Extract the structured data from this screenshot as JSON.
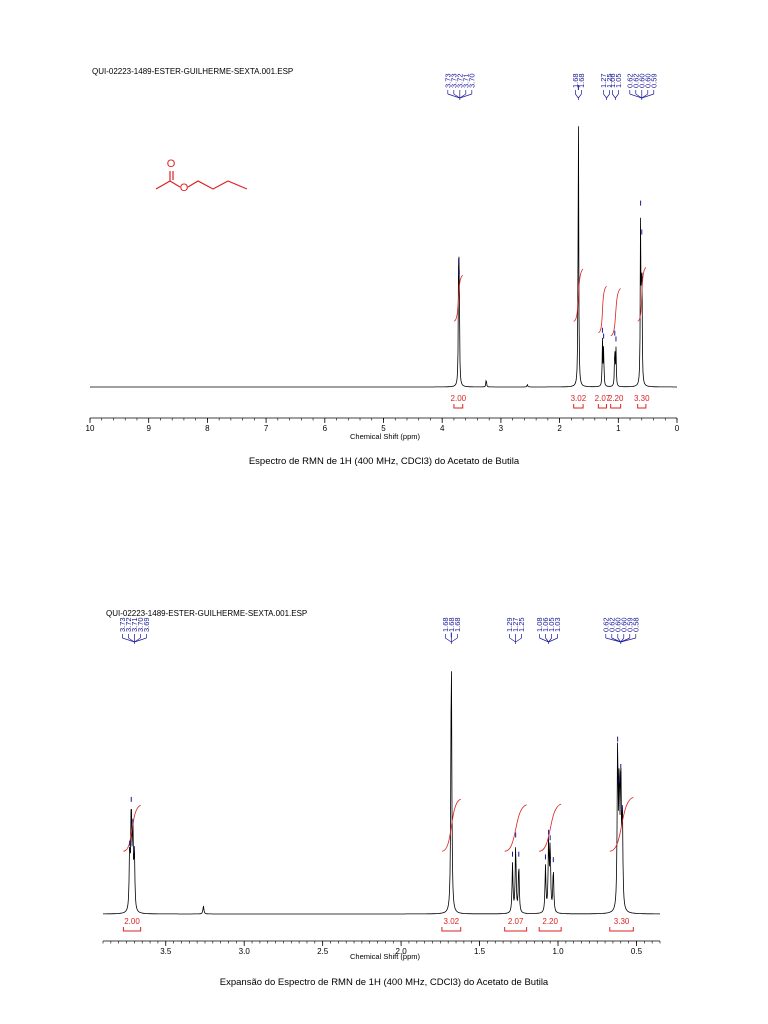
{
  "chart_data": [
    {
      "type": "line",
      "filename": "QUI-02223-1489-ESTER-GUILHERME-SEXTA.001.ESP",
      "title": "Espectro de RMN de 1H (400 MHz, CDCl3) do Acetato de Butila",
      "xlabel": "Chemical Shift (ppm)",
      "xlim": [
        10,
        0
      ],
      "x_reversed": true,
      "ticks": [
        "10",
        "9",
        "8",
        "7",
        "6",
        "5",
        "4",
        "3",
        "2",
        "1",
        "0"
      ],
      "peak_labels": [
        {
          "group": "3.7",
          "values": [
            "3.73",
            "3.73",
            "3.72",
            "3.71",
            "3.70"
          ]
        },
        {
          "group": "1.68",
          "values": [
            "1.68",
            "1.68"
          ]
        },
        {
          "group": "1.2",
          "values": [
            "1.27",
            "1.25"
          ]
        },
        {
          "group": "1.05",
          "values": [
            "1.06",
            "1.05"
          ]
        },
        {
          "group": "0.6",
          "values": [
            "0.62",
            "0.62",
            "0.60",
            "0.60",
            "0.59"
          ]
        }
      ],
      "integrals": [
        {
          "center": 3.72,
          "range": [
            3.65,
            3.8
          ],
          "value": "2.00"
        },
        {
          "center": 1.68,
          "range": [
            1.6,
            1.76
          ],
          "value": "3.02"
        },
        {
          "center": 1.27,
          "range": [
            1.2,
            1.34
          ],
          "value": "2.07"
        },
        {
          "center": 1.05,
          "range": [
            0.96,
            1.13
          ],
          "value": "2.20"
        },
        {
          "center": 0.6,
          "range": [
            0.53,
            0.67
          ],
          "value": "3.30"
        }
      ],
      "peaks": [
        {
          "ppm": 3.72,
          "height": 0.4
        },
        {
          "ppm": 3.71,
          "height": 0.36
        },
        {
          "ppm": 3.25,
          "height": 0.03
        },
        {
          "ppm": 2.55,
          "height": 0.01
        },
        {
          "ppm": 1.68,
          "height": 1.0
        },
        {
          "ppm": 1.27,
          "height": 0.16
        },
        {
          "ppm": 1.25,
          "height": 0.14
        },
        {
          "ppm": 1.06,
          "height": 0.15
        },
        {
          "ppm": 1.04,
          "height": 0.13
        },
        {
          "ppm": 0.62,
          "height": 0.6
        },
        {
          "ppm": 0.6,
          "height": 0.5
        }
      ]
    },
    {
      "type": "line",
      "filename": "QUI-02223-1489-ESTER-GUILHERME-SEXTA.001.ESP",
      "title": "Expansão do Espectro de RMN de 1H (400 MHz, CDCl3) do Acetato de Butila",
      "xlabel": "Chemical Shift (ppm)",
      "xlim": [
        3.9,
        0.35
      ],
      "x_reversed": true,
      "ticks": [
        "3.5",
        "3.0",
        "2.5",
        "2.0",
        "1.5",
        "1.0",
        "0.5"
      ],
      "peak_labels": [
        {
          "group": "3.7",
          "values": [
            "3.73",
            "3.72",
            "3.71",
            "3.70",
            "3.69"
          ]
        },
        {
          "group": "1.68",
          "values": [
            "1.68",
            "1.68",
            "1.68"
          ]
        },
        {
          "group": "1.27",
          "values": [
            "1.29",
            "1.27",
            "1.25"
          ]
        },
        {
          "group": "1.06",
          "values": [
            "1.08",
            "1.06",
            "1.05",
            "1.03"
          ]
        },
        {
          "group": "0.60",
          "values": [
            "0.62",
            "0.62",
            "0.60",
            "0.60",
            "0.59",
            "0.58"
          ]
        }
      ],
      "integrals": [
        {
          "center": 3.71,
          "range": [
            3.66,
            3.77
          ],
          "value": "2.00"
        },
        {
          "center": 1.68,
          "range": [
            1.62,
            1.74
          ],
          "value": "3.02"
        },
        {
          "center": 1.27,
          "range": [
            1.2,
            1.34
          ],
          "value": "2.07"
        },
        {
          "center": 1.06,
          "range": [
            0.98,
            1.12
          ],
          "value": "2.20"
        },
        {
          "center": 0.6,
          "range": [
            0.52,
            0.67
          ],
          "value": "3.30"
        }
      ],
      "peaks": [
        {
          "ppm": 3.73,
          "height": 0.22
        },
        {
          "ppm": 3.72,
          "height": 0.38
        },
        {
          "ppm": 3.71,
          "height": 0.3
        },
        {
          "ppm": 3.7,
          "height": 0.2
        },
        {
          "ppm": 3.26,
          "height": 0.03
        },
        {
          "ppm": 1.68,
          "height": 0.98
        },
        {
          "ppm": 1.29,
          "height": 0.18
        },
        {
          "ppm": 1.27,
          "height": 0.25
        },
        {
          "ppm": 1.25,
          "height": 0.18
        },
        {
          "ppm": 1.08,
          "height": 0.17
        },
        {
          "ppm": 1.06,
          "height": 0.26
        },
        {
          "ppm": 1.05,
          "height": 0.24
        },
        {
          "ppm": 1.03,
          "height": 0.16
        },
        {
          "ppm": 0.62,
          "height": 0.6
        },
        {
          "ppm": 0.61,
          "height": 0.45
        },
        {
          "ppm": 0.6,
          "height": 0.5
        },
        {
          "ppm": 0.59,
          "height": 0.35
        }
      ]
    }
  ],
  "colors": {
    "spectrum": "#000000",
    "integral": "#dd2222",
    "peak_label": "#1a1a99",
    "molecule": "#dd2222"
  }
}
